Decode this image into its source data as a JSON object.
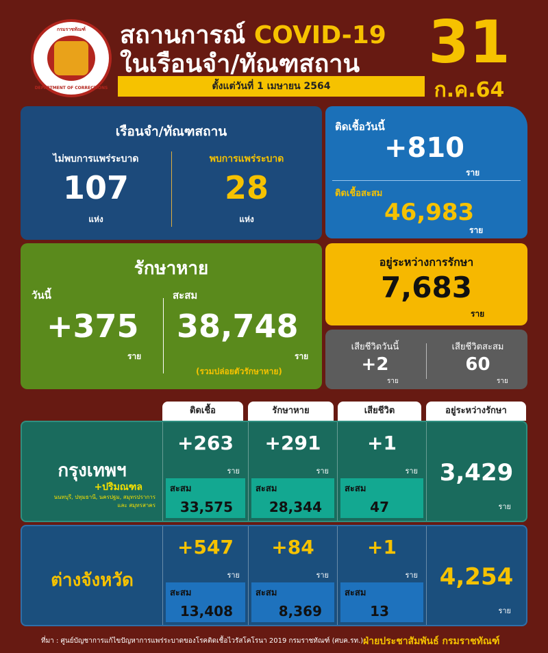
{
  "logo": {
    "text_top": "กรมราชทัณฑ์",
    "text_bottom": "DEPARTMENT OF CORRECTIONS"
  },
  "header": {
    "title_line1": "สถานการณ์",
    "title_covid": "COVID-19",
    "title_line2": "ในเรือนจำ/ทัณฑสถาน",
    "subtitle": "ตั้งแต่วันที่ 1 เมษายน 2564",
    "day": "31",
    "month_year": "ก.ค.64"
  },
  "colors": {
    "background": "#671a12",
    "accent_yellow": "#f6c200",
    "prison_box": "#1c4a7b",
    "infected_box": "#1b70b8",
    "recovered_box": "#5a8a1c",
    "treatment_box": "#f6b800",
    "death_box": "#5c5c5c",
    "bangkok_row": "#1a6b5d",
    "province_row": "#1b4f7d"
  },
  "prisons": {
    "title": "เรือนจำ/ทัณฑสถาน",
    "no_outbreak_label": "ไม่พบการแพร่ระบาด",
    "no_outbreak_value": "107",
    "outbreak_label": "พบการแพร่ระบาด",
    "outbreak_value": "28",
    "unit": "แห่ง"
  },
  "infected": {
    "today_label": "ติดเชื้อวันนี้",
    "today_value": "+810",
    "cumulative_label": "ติดเชื้อสะสม",
    "cumulative_value": "46,983",
    "unit": "ราย"
  },
  "recovered": {
    "title": "รักษาหาย",
    "today_label": "วันนี้",
    "today_value": "+375",
    "cumulative_label": "สะสม",
    "cumulative_value": "38,748",
    "unit": "ราย",
    "note": "(รวมปล่อยตัวรักษาหาย)"
  },
  "treatment": {
    "label": "อยู่ระหว่างการรักษา",
    "value": "7,683",
    "unit": "ราย"
  },
  "deaths": {
    "today_label": "เสียชีวิตวันนี้",
    "today_value": "+2",
    "cumulative_label": "เสียชีวิตสะสม",
    "cumulative_value": "60",
    "unit": "ราย"
  },
  "table": {
    "headers": [
      "ติดเชื้อ",
      "รักษาหาย",
      "เสียชีวิต",
      "อยู่ระหว่างรักษา"
    ],
    "cum_label": "สะสม",
    "unit": "ราย",
    "rows": [
      {
        "name": "กรุงเทพฯ",
        "name_sub": "+ปริมณฑล",
        "name_note": "นนทบุรี, ปทุมธานี, นครปฐม, สมุทรปราการ และ สมุทรสาคร",
        "infected": "+263",
        "infected_cum": "33,575",
        "recovered": "+291",
        "recovered_cum": "28,344",
        "deaths": "+1",
        "deaths_cum": "47",
        "in_treatment": "3,429"
      },
      {
        "name": "ต่างจังหวัด",
        "infected": "+547",
        "infected_cum": "13,408",
        "recovered": "+84",
        "recovered_cum": "8,369",
        "deaths": "+1",
        "deaths_cum": "13",
        "in_treatment": "4,254"
      }
    ]
  },
  "footer": {
    "source": "ที่มา : ศูนย์บัญชาการแก้ไขปัญหาการแพร่ระบาดของโรคติดเชื้อไวรัสโคโรนา 2019 กรมราชทัณฑ์ (ศบค.รท.)",
    "credit": "ฝ่ายประชาสัมพันธ์ กรมราชทัณฑ์"
  }
}
